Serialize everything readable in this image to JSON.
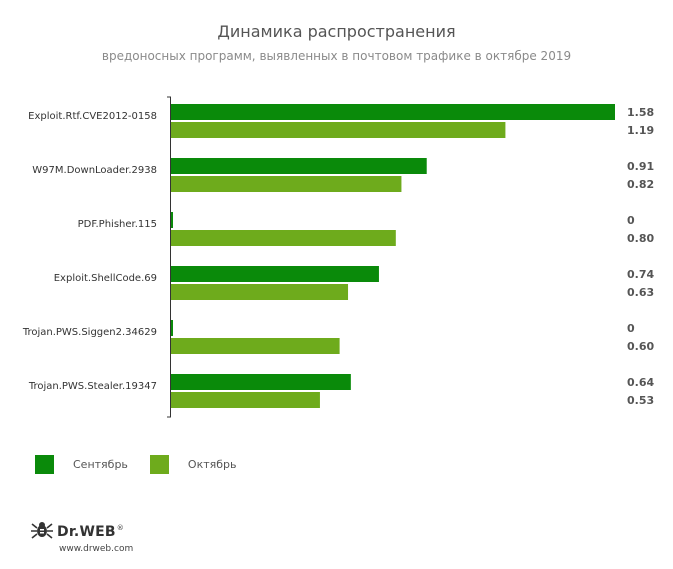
{
  "chart_data": {
    "type": "bar",
    "orientation": "horizontal",
    "title": "Динамика распространения",
    "subtitle": "вредоносных программ, выявленных в почтовом трафике в октябре 2019",
    "categories": [
      "Exploit.Rtf.CVE2012-0158",
      "W97M.DownLoader.2938",
      "PDF.Phisher.115",
      "Exploit.ShellCode.69",
      "Trojan.PWS.Siggen2.34629",
      "Trojan.PWS.Stealer.19347"
    ],
    "series": [
      {
        "name": "Сентябрь",
        "color": "#0a8a0a",
        "values": [
          1.58,
          0.91,
          0,
          0.74,
          0,
          0.64
        ],
        "labels": [
          "1.58",
          "0.91",
          "0",
          "0.74",
          "0",
          "0.64"
        ]
      },
      {
        "name": "Октябрь",
        "color": "#6eab1c",
        "values": [
          1.19,
          0.82,
          0.8,
          0.63,
          0.6,
          0.53
        ],
        "labels": [
          "1.19",
          "0.82",
          "0.80",
          "0.63",
          "0.60",
          "0.53"
        ]
      }
    ],
    "xlim": [
      0,
      1.58
    ],
    "grid": false,
    "legend_position": "bottom-left"
  },
  "logo": {
    "brand": "Dr.WEB",
    "url": "www.drweb.com"
  }
}
